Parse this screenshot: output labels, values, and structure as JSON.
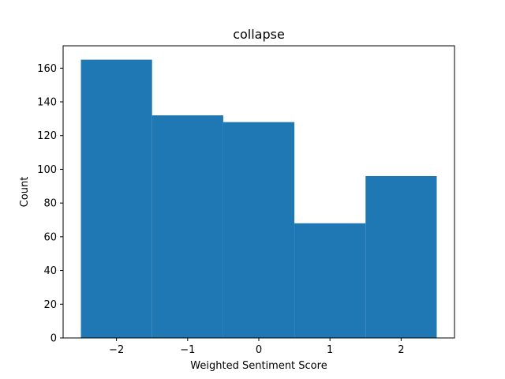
{
  "chart_data": {
    "type": "bar",
    "title": "collapse",
    "xlabel": "Weighted Sentiment Score",
    "ylabel": "Count",
    "bins": [
      {
        "x0": -2.5,
        "x1": -1.5,
        "count": 165
      },
      {
        "x0": -1.5,
        "x1": -0.5,
        "count": 132
      },
      {
        "x0": -0.5,
        "x1": 0.5,
        "count": 128
      },
      {
        "x0": 0.5,
        "x1": 1.5,
        "count": 68
      },
      {
        "x0": 1.5,
        "x1": 2.5,
        "count": 96
      }
    ],
    "xlim": [
      -2.75,
      2.75
    ],
    "ylim": [
      0,
      173.25
    ],
    "xticks": [
      -2,
      -1,
      0,
      1,
      2
    ],
    "xtick_labels": [
      "−2",
      "−1",
      "0",
      "1",
      "2"
    ],
    "yticks": [
      0,
      20,
      40,
      60,
      80,
      100,
      120,
      140,
      160
    ],
    "ytick_labels": [
      "0",
      "20",
      "40",
      "60",
      "80",
      "100",
      "120",
      "140",
      "160"
    ],
    "grid": false,
    "bar_color": "#1f77b4"
  }
}
